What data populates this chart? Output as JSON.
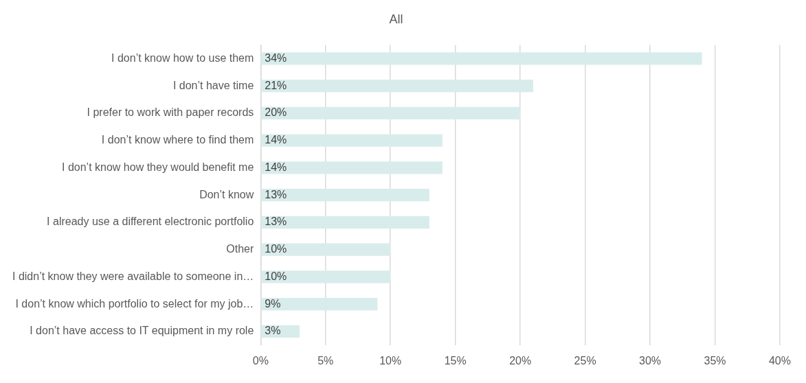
{
  "chart_data": {
    "type": "bar",
    "orientation": "horizontal",
    "title": "All",
    "categories": [
      "I don’t know how to use them",
      "I don’t have time",
      "I prefer to work with paper records",
      "I don’t know where to find them",
      "I don’t know how they would benefit me",
      "Don’t know",
      "I already use a different electronic portfolio",
      "Other",
      "I didn’t know they were available to someone in…",
      "I don’t know which portfolio to select for my job…",
      "I don’t have access to IT equipment in my role"
    ],
    "values": [
      34,
      21,
      20,
      14,
      14,
      13,
      13,
      10,
      10,
      9,
      3
    ],
    "value_labels": [
      "34%",
      "21%",
      "20%",
      "14%",
      "14%",
      "13%",
      "13%",
      "10%",
      "10%",
      "9%",
      "3%"
    ],
    "color": "#d9ecec",
    "xlim": [
      0,
      40
    ],
    "xticks": [
      {
        "value": 0,
        "label": "0%"
      },
      {
        "value": 5,
        "label": "5%"
      },
      {
        "value": 10,
        "label": "10%"
      },
      {
        "value": 15,
        "label": "15%"
      },
      {
        "value": 20,
        "label": "20%"
      },
      {
        "value": 25,
        "label": "25%"
      },
      {
        "value": 30,
        "label": "30%"
      },
      {
        "value": 35,
        "label": "35%"
      },
      {
        "value": 40,
        "label": "40%"
      }
    ],
    "grid": "x",
    "legend": false
  }
}
